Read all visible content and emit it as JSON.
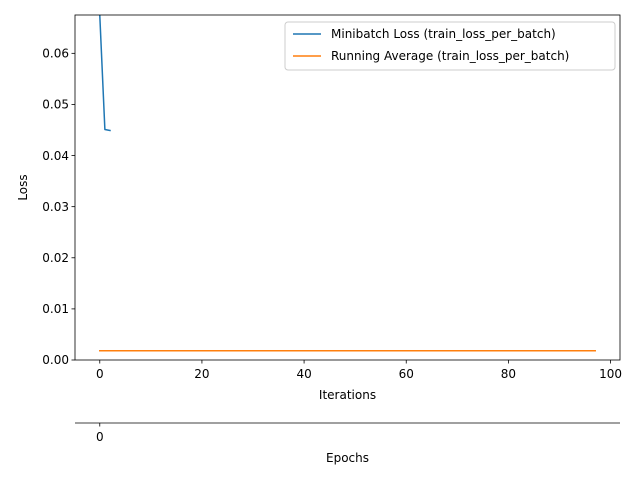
{
  "chart_data": {
    "type": "line",
    "xlabel": "Iterations",
    "ylabel": "Loss",
    "secondary_xlabel": "Epochs",
    "xlim": [
      -4.85,
      101.85
    ],
    "ylim": [
      0.0,
      0.0675
    ],
    "x_ticks": [
      0,
      20,
      40,
      60,
      80,
      100
    ],
    "y_ticks": [
      0.0,
      0.01,
      0.02,
      0.03,
      0.04,
      0.05,
      0.06
    ],
    "y_tick_labels": [
      "0.00",
      "0.01",
      "0.02",
      "0.03",
      "0.04",
      "0.05",
      "0.06"
    ],
    "secondary_x_ticks": [
      0
    ],
    "secondary_x_tick_labels": [
      "0"
    ],
    "legend_position": "top-right",
    "grid": false,
    "series": [
      {
        "name": "Minibatch Loss (train_loss_per_batch)",
        "color": "#1f77b4",
        "x": [
          0,
          1,
          2
        ],
        "y": [
          0.0675,
          0.0451,
          0.0449
        ],
        "note_clipped": true
      },
      {
        "name": "Running Average (train_loss_per_batch)",
        "color": "#ff7f0e",
        "x": [
          0,
          97
        ],
        "y": [
          0.0018,
          0.0018
        ]
      }
    ]
  }
}
